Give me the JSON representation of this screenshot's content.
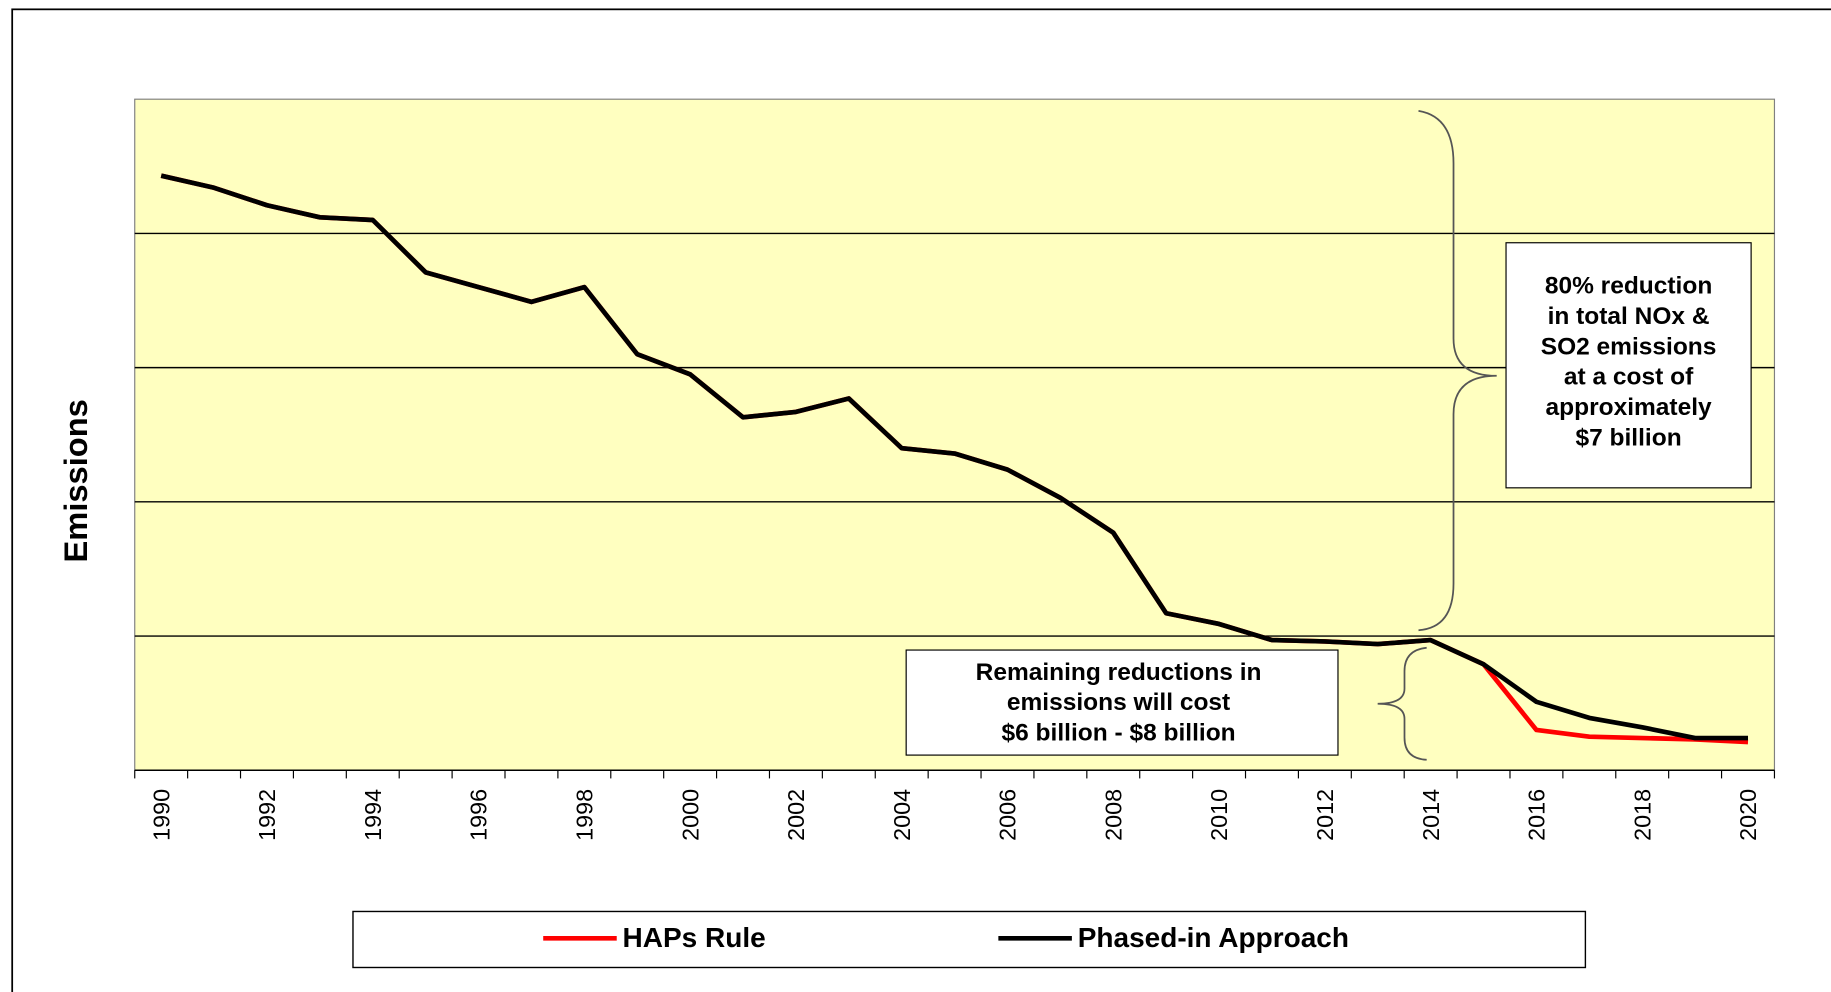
{
  "chart_data": {
    "type": "line",
    "y_label": "Emissions",
    "categories": [
      "1990",
      null,
      "1992",
      null,
      "1994",
      null,
      "1996",
      null,
      "1998",
      null,
      "2000",
      null,
      "2002",
      null,
      "2004",
      null,
      "2006",
      null,
      "2008",
      null,
      "2010",
      null,
      "2012",
      null,
      "2014",
      null,
      "2016",
      null,
      "2018",
      null,
      "2020"
    ],
    "series": [
      {
        "name": "HAPs Rule",
        "color": "#ff0000",
        "values": [
          4.43,
          4.34,
          4.21,
          4.12,
          4.1,
          3.71,
          3.6,
          3.49,
          3.6,
          3.1,
          2.95,
          2.63,
          2.67,
          2.77,
          2.4,
          2.36,
          2.24,
          2.03,
          1.77,
          1.17,
          1.09,
          0.97,
          0.96,
          0.94,
          0.97,
          0.79,
          0.3,
          0.25,
          0.24,
          0.23,
          0.21
        ]
      },
      {
        "name": "Phased-in Approach",
        "color": "#000000",
        "values": [
          4.43,
          4.34,
          4.21,
          4.12,
          4.1,
          3.71,
          3.6,
          3.49,
          3.6,
          3.1,
          2.95,
          2.63,
          2.67,
          2.77,
          2.4,
          2.36,
          2.24,
          2.03,
          1.77,
          1.17,
          1.09,
          0.97,
          0.96,
          0.94,
          0.97,
          0.79,
          0.51,
          0.39,
          0.32,
          0.24,
          0.24
        ]
      }
    ],
    "ylim": [
      0,
      5
    ],
    "yticks": [
      1,
      2,
      3,
      4
    ],
    "grid": true,
    "show_ytick_labels": false,
    "plot_background": "#ffffc0",
    "legend": "bottom",
    "annotations": [
      {
        "lines": [
          "80% reduction",
          "in total NOx &",
          "SO2 emissions",
          "at a cost of",
          "approximately",
          "$7 billion"
        ]
      },
      {
        "lines": [
          "Remaining reductions in",
          "emissions will cost",
          "$6 billion - $8 billion"
        ]
      }
    ]
  }
}
